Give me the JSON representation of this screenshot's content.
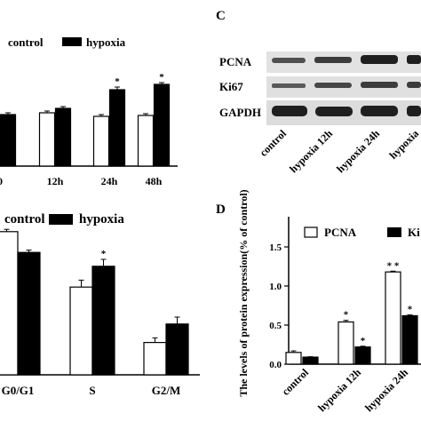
{
  "panel_c": {
    "letter": "C",
    "row_labels": [
      "PCNA",
      "Ki67",
      "GAPDH"
    ],
    "lane_labels": [
      "control",
      "hypoxia 12h",
      "hypoxia 24h",
      "hypoxia"
    ]
  },
  "panel_d": {
    "letter": "D"
  },
  "chart_data": [
    {
      "panel": "top-left",
      "type": "bar",
      "categories": [
        "0",
        "12h",
        "24h",
        "48h"
      ],
      "series": [
        {
          "name": "control",
          "values": [
            0.58,
            0.6,
            0.56,
            0.57
          ]
        },
        {
          "name": "hypoxia",
          "values": [
            0.58,
            0.65,
            0.86,
            0.92
          ]
        }
      ],
      "errors": [
        [
          0.02,
          0.02,
          0.02,
          0.02
        ],
        [
          0.02,
          0.02,
          0.03,
          0.02
        ]
      ],
      "significance": [
        "",
        "",
        "*",
        "*"
      ],
      "ylim": [
        0,
        1.2
      ],
      "legend_position": "top",
      "legend": [
        {
          "marker": "o",
          "text": "control"
        },
        {
          "marker": "",
          "text": "hypoxia"
        }
      ],
      "colors": {
        "control": "#ffffff",
        "hypoxia": "#000000"
      }
    },
    {
      "panel": "bottom-left",
      "type": "bar",
      "categories": [
        "G0/G1",
        "S",
        "G2/M"
      ],
      "series": [
        {
          "name": "control",
          "values": [
            0.62,
            0.38,
            0.14
          ]
        },
        {
          "name": "hypoxia",
          "values": [
            0.53,
            0.47,
            0.22
          ]
        }
      ],
      "errors": [
        [
          0.01,
          0.03,
          0.02
        ],
        [
          0.01,
          0.03,
          0.03
        ]
      ],
      "significance": [
        "",
        "*",
        ""
      ],
      "ylim": [
        0,
        0.75
      ],
      "legend_position": "top",
      "legend": [
        {
          "marker": "",
          "text": "control"
        },
        {
          "marker": "",
          "text": "hypoxia"
        }
      ],
      "colors": {
        "control": "#ffffff",
        "hypoxia": "#000000"
      }
    },
    {
      "panel": "D",
      "type": "bar",
      "categories": [
        "control",
        "hypoxia 12h",
        "hypoxia 24h"
      ],
      "series": [
        {
          "name": "PCNA",
          "values": [
            0.15,
            0.54,
            1.18
          ]
        },
        {
          "name": "Ki",
          "values": [
            0.09,
            0.22,
            0.62
          ]
        }
      ],
      "errors": [
        [
          0.02,
          0.02,
          0.01
        ],
        [
          0.005,
          0.01,
          0.01
        ]
      ],
      "significance": [
        [
          "",
          "*",
          "* *"
        ],
        [
          "",
          "*",
          "*"
        ]
      ],
      "ylabel": "The levels of protein expression(% of control)",
      "ylim": [
        0,
        1.5
      ],
      "yticks": [
        0.0,
        0.5,
        1.0,
        1.5
      ],
      "legend_position": "top",
      "colors": {
        "PCNA": "#ffffff",
        "Ki": "#000000"
      }
    }
  ]
}
